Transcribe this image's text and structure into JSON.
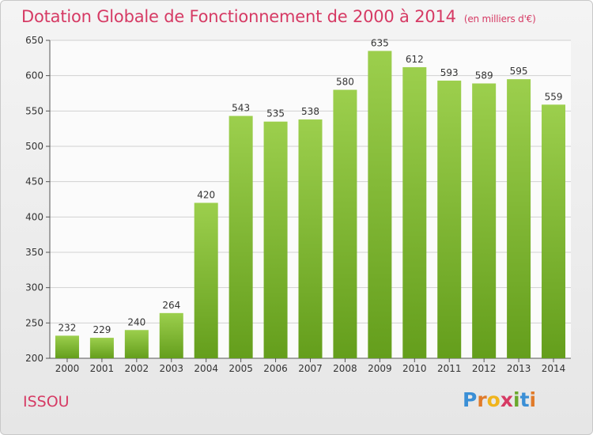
{
  "title": "Dotation Globale de Fonctionnement de 2000 à 2014",
  "unit_note": "(en milliers d'€)",
  "city": "ISSOU",
  "logo_letters": [
    "P",
    "r",
    "o",
    "x",
    "i",
    "t",
    "i"
  ],
  "colors": {
    "bar": "#7cb82f",
    "title": "#d63a64",
    "grid": "#d0d0d0"
  },
  "chart_data": {
    "type": "bar",
    "title": "Dotation Globale de Fonctionnement de 2000 à 2014",
    "xlabel": "",
    "ylabel": "",
    "ylim": [
      200,
      650
    ],
    "yticks": [
      200,
      250,
      300,
      350,
      400,
      450,
      500,
      550,
      600,
      650
    ],
    "grid": true,
    "categories": [
      "2000",
      "2001",
      "2002",
      "2003",
      "2004",
      "2005",
      "2006",
      "2007",
      "2008",
      "2009",
      "2010",
      "2011",
      "2012",
      "2013",
      "2014"
    ],
    "values": [
      232,
      229,
      240,
      264,
      420,
      543,
      535,
      538,
      580,
      635,
      612,
      593,
      589,
      595,
      559
    ]
  }
}
